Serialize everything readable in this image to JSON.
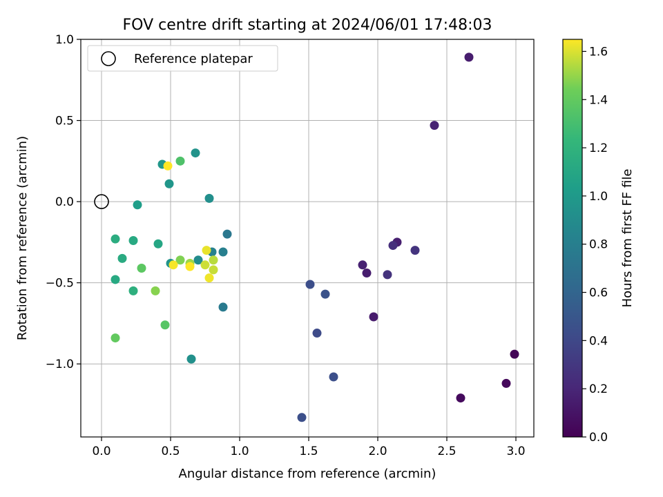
{
  "chart_data": {
    "type": "scatter",
    "title": "FOV centre drift starting at 2024/06/01 17:48:03",
    "xlabel": "Angular distance from reference (arcmin)",
    "ylabel": "Rotation from reference (arcmin)",
    "xlim": [
      -0.15,
      3.13
    ],
    "ylim": [
      -1.45,
      1.0
    ],
    "xticks": [
      0.0,
      0.5,
      1.0,
      1.5,
      2.0,
      2.5,
      3.0
    ],
    "xtick_labels": [
      "0.0",
      "0.5",
      "1.0",
      "1.5",
      "2.0",
      "2.5",
      "3.0"
    ],
    "yticks": [
      1.0,
      0.5,
      0.0,
      -0.5,
      -1.0
    ],
    "ytick_labels": [
      "1.0",
      "0.5",
      "0.0",
      "−0.5",
      "−1.0"
    ],
    "grid": true,
    "legend": {
      "position": "upper-left",
      "entries": [
        "Reference platepar"
      ]
    },
    "reference_point": {
      "x": 0.0,
      "y": 0.0
    },
    "colorbar": {
      "label": "Hours from first FF file",
      "colormap": "viridis",
      "range": [
        0.0,
        1.65
      ],
      "ticks": [
        0.0,
        0.2,
        0.4,
        0.6,
        0.8,
        1.0,
        1.2,
        1.4,
        1.6
      ],
      "tick_labels": [
        "0.0",
        "0.2",
        "0.4",
        "0.6",
        "0.8",
        "1.0",
        "1.2",
        "1.4",
        "1.6"
      ]
    },
    "points": [
      {
        "x": 2.99,
        "y": -0.94,
        "c": 0.02
      },
      {
        "x": 2.93,
        "y": -1.12,
        "c": 0.04
      },
      {
        "x": 2.6,
        "y": -1.21,
        "c": 0.05
      },
      {
        "x": 2.66,
        "y": 0.89,
        "c": 0.15
      },
      {
        "x": 2.41,
        "y": 0.47,
        "c": 0.18
      },
      {
        "x": 2.27,
        "y": -0.3,
        "c": 0.28
      },
      {
        "x": 2.14,
        "y": -0.25,
        "c": 0.16
      },
      {
        "x": 2.11,
        "y": -0.27,
        "c": 0.25
      },
      {
        "x": 2.07,
        "y": -0.45,
        "c": 0.27
      },
      {
        "x": 1.97,
        "y": -0.71,
        "c": 0.14
      },
      {
        "x": 1.92,
        "y": -0.44,
        "c": 0.15
      },
      {
        "x": 1.89,
        "y": -0.39,
        "c": 0.17
      },
      {
        "x": 1.68,
        "y": -1.08,
        "c": 0.45
      },
      {
        "x": 1.62,
        "y": -0.57,
        "c": 0.47
      },
      {
        "x": 1.56,
        "y": -0.81,
        "c": 0.42
      },
      {
        "x": 1.51,
        "y": -0.51,
        "c": 0.44
      },
      {
        "x": 1.45,
        "y": -1.33,
        "c": 0.45
      },
      {
        "x": 0.91,
        "y": -0.2,
        "c": 0.74
      },
      {
        "x": 0.88,
        "y": -0.31,
        "c": 0.8
      },
      {
        "x": 0.88,
        "y": -0.65,
        "c": 0.76
      },
      {
        "x": 0.8,
        "y": -0.31,
        "c": 0.82
      },
      {
        "x": 0.78,
        "y": 0.02,
        "c": 0.92
      },
      {
        "x": 0.7,
        "y": -0.36,
        "c": 0.9
      },
      {
        "x": 0.68,
        "y": 0.3,
        "c": 0.95
      },
      {
        "x": 0.65,
        "y": -0.97,
        "c": 0.93
      },
      {
        "x": 0.49,
        "y": 0.11,
        "c": 0.97
      },
      {
        "x": 0.5,
        "y": -0.38,
        "c": 0.95
      },
      {
        "x": 0.44,
        "y": 0.23,
        "c": 0.98
      },
      {
        "x": 0.26,
        "y": -0.02,
        "c": 1.03
      },
      {
        "x": 0.41,
        "y": -0.26,
        "c": 1.1
      },
      {
        "x": 0.23,
        "y": -0.24,
        "c": 1.12
      },
      {
        "x": 0.1,
        "y": -0.23,
        "c": 1.15
      },
      {
        "x": 0.15,
        "y": -0.35,
        "c": 1.13
      },
      {
        "x": 0.1,
        "y": -0.48,
        "c": 1.12
      },
      {
        "x": 0.23,
        "y": -0.55,
        "c": 1.17
      },
      {
        "x": 0.57,
        "y": 0.25,
        "c": 1.33
      },
      {
        "x": 0.29,
        "y": -0.41,
        "c": 1.38
      },
      {
        "x": 0.1,
        "y": -0.84,
        "c": 1.4
      },
      {
        "x": 0.46,
        "y": -0.76,
        "c": 1.36
      },
      {
        "x": 0.39,
        "y": -0.55,
        "c": 1.48
      },
      {
        "x": 0.57,
        "y": -0.36,
        "c": 1.47
      },
      {
        "x": 0.64,
        "y": -0.38,
        "c": 1.51
      },
      {
        "x": 0.81,
        "y": -0.36,
        "c": 1.55
      },
      {
        "x": 0.81,
        "y": -0.42,
        "c": 1.57
      },
      {
        "x": 0.75,
        "y": -0.39,
        "c": 1.58
      },
      {
        "x": 0.76,
        "y": -0.3,
        "c": 1.62
      },
      {
        "x": 0.78,
        "y": -0.47,
        "c": 1.63
      },
      {
        "x": 0.64,
        "y": -0.4,
        "c": 1.65
      },
      {
        "x": 0.52,
        "y": -0.39,
        "c": 1.64
      },
      {
        "x": 0.48,
        "y": 0.22,
        "c": 1.65
      }
    ]
  }
}
